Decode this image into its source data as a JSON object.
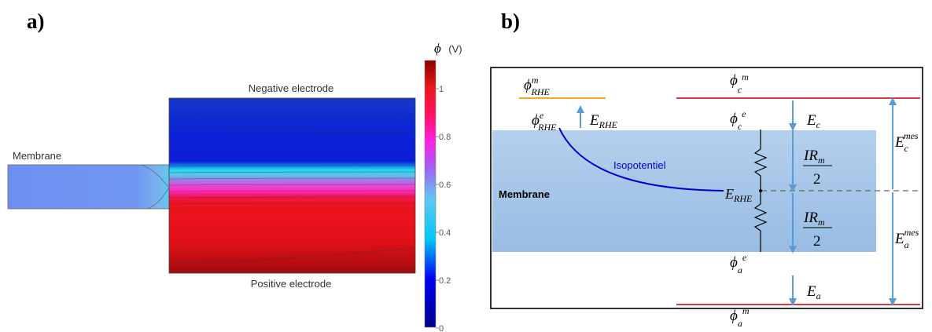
{
  "panel_a": {
    "label": "a)",
    "membrane_label": "Membrane",
    "negative_label": "Negative electrode",
    "positive_label": "Positive electrode",
    "colorbar": {
      "phi_symbol": "ϕ",
      "unit": "(V)",
      "ticks": [
        "1",
        "0.8",
        "0.6",
        "0.4",
        "0.2",
        "0"
      ]
    }
  },
  "panel_b": {
    "label": "b)",
    "membrane_label": "Membrane",
    "isopotential_label": "Isopotentiel",
    "phi": "ϕ",
    "E": "E",
    "sup_m": "m",
    "sup_e": "e",
    "sup_mes": "mes",
    "sub_RHE": "RHE",
    "sub_c": "c",
    "sub_a": "a",
    "IR": "IR",
    "sub_m": "m",
    "two": "2"
  },
  "colors": {
    "reference_line": "#f0a830",
    "electrode_line": "#c00000",
    "arrow": "#5b9bd5",
    "isopotential": "#0000cc",
    "membrane_fill": "#a8c9e8"
  }
}
